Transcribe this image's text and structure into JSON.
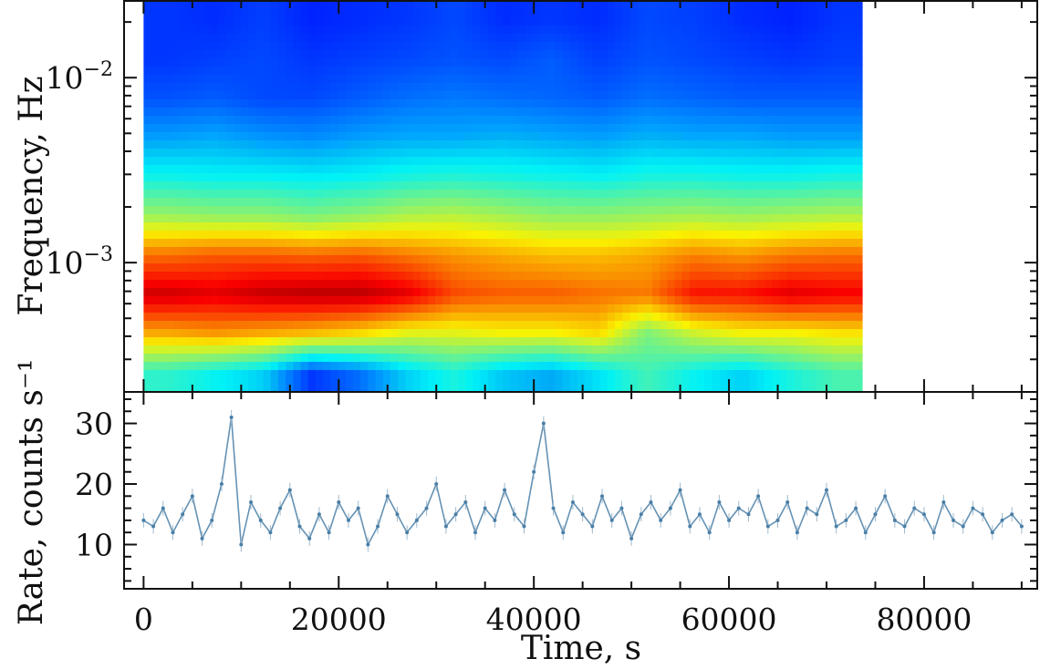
{
  "chart_data": [
    {
      "type": "heatmap",
      "panel": "top",
      "xlabel": "",
      "ylabel": "Frequency, Hz",
      "yscale": "log",
      "ylim": [
        0.0002,
        0.026
      ],
      "xlim": [
        -2000,
        91600
      ],
      "ytick_labels": [
        {
          "base": "10",
          "exp": "−2",
          "value": 0.01
        },
        {
          "base": "10",
          "exp": "−3",
          "value": 0.001
        }
      ],
      "colormap": "jet",
      "time_extent": [
        0,
        73700
      ],
      "time_bin_centers": [
        2457,
        7370,
        12283,
        17196,
        22109,
        27022,
        31935,
        36848,
        41761,
        46674,
        51587,
        56500,
        61413,
        66326,
        71239
      ],
      "frequency_rows_high_to_low": [
        0.0203,
        0.0124,
        0.0075,
        0.0046,
        0.0028,
        0.0017,
        0.00102,
        0.00062,
        0.00038,
        0.00023
      ],
      "normalized_power": [
        [
          0.18,
          0.17,
          0.19,
          0.16,
          0.17,
          0.18,
          0.2,
          0.17,
          0.18,
          0.17,
          0.2,
          0.19,
          0.17,
          0.16,
          0.18
        ],
        [
          0.18,
          0.19,
          0.2,
          0.18,
          0.19,
          0.2,
          0.21,
          0.2,
          0.22,
          0.19,
          0.21,
          0.2,
          0.19,
          0.18,
          0.19
        ],
        [
          0.21,
          0.22,
          0.2,
          0.2,
          0.22,
          0.24,
          0.25,
          0.24,
          0.23,
          0.22,
          0.24,
          0.23,
          0.22,
          0.22,
          0.22
        ],
        [
          0.29,
          0.3,
          0.28,
          0.27,
          0.29,
          0.3,
          0.3,
          0.31,
          0.3,
          0.29,
          0.31,
          0.3,
          0.3,
          0.29,
          0.29
        ],
        [
          0.39,
          0.38,
          0.38,
          0.37,
          0.38,
          0.4,
          0.41,
          0.4,
          0.39,
          0.38,
          0.4,
          0.4,
          0.39,
          0.39,
          0.4
        ],
        [
          0.53,
          0.52,
          0.52,
          0.5,
          0.52,
          0.55,
          0.56,
          0.54,
          0.52,
          0.52,
          0.53,
          0.54,
          0.53,
          0.54,
          0.55
        ],
        [
          0.76,
          0.78,
          0.78,
          0.77,
          0.78,
          0.75,
          0.72,
          0.7,
          0.68,
          0.68,
          0.7,
          0.74,
          0.72,
          0.75,
          0.76
        ],
        [
          0.92,
          0.9,
          0.93,
          0.94,
          0.94,
          0.9,
          0.8,
          0.78,
          0.78,
          0.76,
          0.75,
          0.86,
          0.86,
          0.9,
          0.88
        ],
        [
          0.7,
          0.72,
          0.7,
          0.68,
          0.65,
          0.6,
          0.6,
          0.62,
          0.62,
          0.65,
          0.5,
          0.58,
          0.62,
          0.62,
          0.64
        ],
        [
          0.42,
          0.38,
          0.34,
          0.18,
          0.24,
          0.34,
          0.4,
          0.33,
          0.3,
          0.36,
          0.44,
          0.38,
          0.34,
          0.4,
          0.45
        ]
      ]
    },
    {
      "type": "scatter",
      "panel": "bottom",
      "xlabel": "Time, s",
      "ylabel": "Rate, counts s⁻¹",
      "xlim": [
        -2000,
        91600
      ],
      "ylim": [
        2.7,
        35.2
      ],
      "xtick_labels": [
        "0",
        "20000",
        "40000",
        "60000",
        "80000"
      ],
      "xticks": [
        0,
        20000,
        40000,
        60000,
        80000
      ],
      "ytick_labels": [
        "10",
        "20",
        "30"
      ],
      "yticks": [
        10,
        20,
        30
      ],
      "color": "#4a7fa7",
      "x_step": 1000,
      "x_start": 0,
      "rate": [
        14,
        13,
        16,
        12,
        15,
        18,
        11,
        14,
        20,
        31,
        10,
        17,
        14,
        12,
        16,
        19,
        13,
        11,
        15,
        12,
        17,
        14,
        16,
        10,
        13,
        18,
        15,
        12,
        14,
        16,
        20,
        13,
        15,
        17,
        12,
        16,
        14,
        19,
        15,
        13,
        22,
        30,
        16,
        12,
        17,
        15,
        13,
        18,
        14,
        16,
        11,
        15,
        17,
        14,
        16,
        19,
        13,
        15,
        12,
        17,
        14,
        16,
        15,
        18,
        13,
        14,
        17,
        12,
        16,
        15,
        19,
        13,
        14,
        16,
        12,
        15,
        18,
        14,
        13,
        16,
        15,
        12,
        17,
        14,
        13,
        16,
        15,
        12,
        14,
        15,
        13
      ]
    }
  ]
}
